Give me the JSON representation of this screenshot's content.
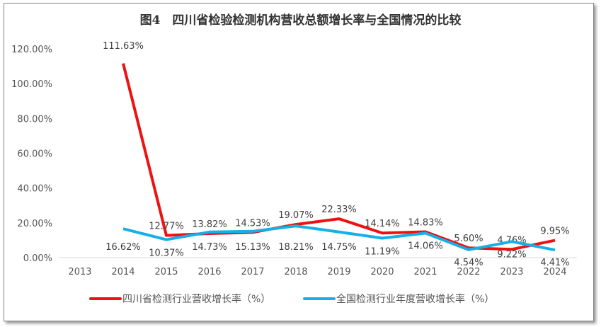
{
  "chart_data": {
    "type": "line",
    "title": "图4　四川省检验检测机构营收总额增长率与全国情况的比较",
    "categories": [
      "2013",
      "2014",
      "2015",
      "2016",
      "2017",
      "2018",
      "2019",
      "2020",
      "2021",
      "2022",
      "2023",
      "2024"
    ],
    "ylim": [
      0,
      120
    ],
    "yticks": [
      "0.00%",
      "20.00%",
      "40.00%",
      "60.00%",
      "80.00%",
      "100.00%",
      "120.00%"
    ],
    "grid": false,
    "legend": "bottom",
    "series": [
      {
        "name": "四川省检测行业营收增长率（%）",
        "color": "#ee1111",
        "values": [
          null,
          111.63,
          12.77,
          13.82,
          14.53,
          19.07,
          22.33,
          14.14,
          14.83,
          5.6,
          4.76,
          9.95
        ],
        "labels": [
          "",
          "111.63%",
          "12.77%",
          "13.82%",
          "14.53%",
          "19.07%",
          "22.33%",
          "14.14%",
          "14.83%",
          "5.60%",
          "4.76%",
          "9.95%"
        ]
      },
      {
        "name": "全国检测行业年度营收增长率（%）",
        "color": "#16b0e8",
        "values": [
          null,
          16.62,
          10.37,
          14.73,
          15.13,
          18.21,
          14.75,
          11.19,
          14.06,
          4.54,
          9.22,
          4.41
        ],
        "labels": [
          "",
          "16.62%",
          "10.37%",
          "14.73%",
          "15.13%",
          "18.21%",
          "14.75%",
          "11.19%",
          "14.06%",
          "4.54%",
          "9.22%",
          "4.41%"
        ]
      }
    ]
  }
}
